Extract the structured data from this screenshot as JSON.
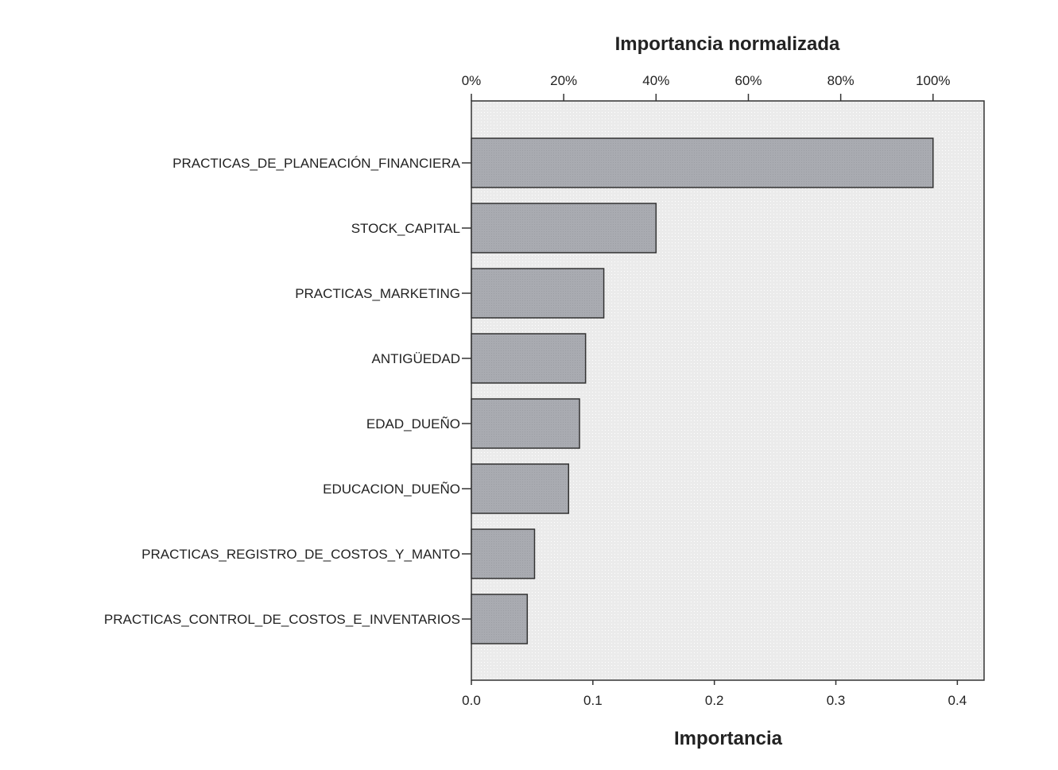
{
  "chart_data": {
    "type": "bar",
    "orientation": "horizontal",
    "top_axis_title": "Importancia normalizada",
    "xlabel": "Importancia",
    "ylabel": "",
    "categories": [
      "PRACTICAS_DE_PLANEACIÓN_FINANCIERA",
      "STOCK_CAPITAL",
      "PRACTICAS_MARKETING",
      "ANTIGÜEDAD",
      "EDAD_DUEÑO",
      "EDUCACION_DUEÑO",
      "PRACTICAS_REGISTRO_DE_COSTOS_Y_MANTO",
      "PRACTICAS_CONTROL_DE_COSTOS_E_INVENTARIOS"
    ],
    "values": [
      0.38,
      0.152,
      0.109,
      0.094,
      0.089,
      0.08,
      0.052,
      0.046
    ],
    "xlim": [
      0,
      0.422
    ],
    "bottom_ticks": [
      "0.0",
      "0.1",
      "0.2",
      "0.3",
      "0.4"
    ],
    "bottom_tick_values": [
      0,
      0.1,
      0.2,
      0.3,
      0.4
    ],
    "top_ticks": [
      "0%",
      "20%",
      "40%",
      "60%",
      "80%",
      "100%"
    ],
    "top_tick_values": [
      0,
      20,
      40,
      60,
      80,
      100
    ],
    "normalization_max": 0.38,
    "grid": false,
    "colors": {
      "bar_fill": "#a9abb1",
      "bar_stroke": "#333333",
      "plot_background": "#ebebeb"
    }
  }
}
